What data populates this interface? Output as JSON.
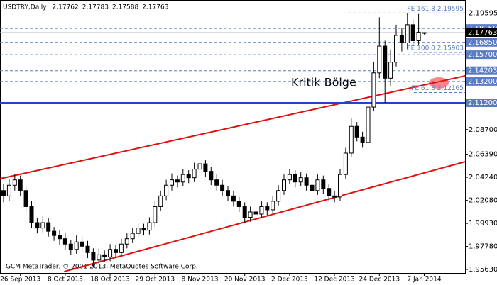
{
  "chart_data": {
    "type": "candlestick",
    "header": {
      "symbol": "USDTRY,Daily",
      "ohlc": [
        2.17762,
        2.17783,
        2.17588,
        2.17763
      ]
    },
    "footer": "GCM MetaTrader, © 2001-2013, MetaQuotes Software Corp.",
    "annotation": "Kritik Bölge",
    "categories": [
      null,
      null,
      null,
      "26 Sep 2013",
      null,
      null,
      null,
      null,
      null,
      null,
      null,
      "8 Oct 2013",
      null,
      null,
      null,
      null,
      null,
      null,
      null,
      "18 Oct 2013",
      null,
      null,
      null,
      null,
      null,
      null,
      null,
      "29 Oct 2013",
      null,
      null,
      null,
      null,
      null,
      null,
      null,
      "8 Nov 2013",
      null,
      null,
      null,
      null,
      null,
      null,
      null,
      "20 Nov 2013",
      null,
      null,
      null,
      null,
      null,
      null,
      null,
      "2 Dec 2013",
      null,
      null,
      null,
      null,
      null,
      null,
      null,
      "12 Dec 2013",
      null,
      null,
      null,
      null,
      null,
      null,
      null,
      "24 Dec 2013",
      null,
      null,
      null,
      null,
      null,
      null,
      null,
      "7 Jan 2014"
    ],
    "open": [
      2.03,
      2.025,
      2.035,
      2.04,
      2.03,
      2.015,
      2.0,
      1.995,
      2.0,
      1.992,
      1.988,
      1.985,
      1.98,
      1.975,
      1.982,
      1.978,
      1.972,
      1.965,
      1.97,
      1.968,
      1.975,
      1.972,
      1.98,
      1.985,
      1.99,
      1.995,
      1.993,
      2.0,
      2.015,
      2.025,
      2.035,
      2.04,
      2.038,
      2.045,
      2.042,
      2.05,
      2.055,
      2.048,
      2.04,
      2.035,
      2.03,
      2.025,
      2.02,
      2.015,
      2.005,
      2.01,
      2.008,
      2.015,
      2.012,
      2.02,
      2.03,
      2.04,
      2.045,
      2.038,
      2.042,
      2.035,
      2.03,
      2.04,
      2.032,
      2.025,
      2.024,
      2.045,
      2.065,
      2.09,
      2.08,
      2.075,
      2.108,
      2.14,
      2.165,
      2.135,
      2.15,
      2.175,
      2.168,
      2.185,
      2.17,
      2.17762
    ],
    "high": [
      2.036,
      2.041,
      2.045,
      2.044,
      2.034,
      2.02,
      2.004,
      2.006,
      2.004,
      1.996,
      1.993,
      1.99,
      1.984,
      1.988,
      1.987,
      1.983,
      1.976,
      1.976,
      1.974,
      1.98,
      1.979,
      1.985,
      1.99,
      1.995,
      2.0,
      1.999,
      2.005,
      2.02,
      2.03,
      2.04,
      2.046,
      2.044,
      2.05,
      2.049,
      2.056,
      2.061,
      2.059,
      2.052,
      2.045,
      2.04,
      2.034,
      2.03,
      2.024,
      2.019,
      2.015,
      2.014,
      2.02,
      2.019,
      2.025,
      2.035,
      2.045,
      2.05,
      2.049,
      2.047,
      2.046,
      2.039,
      2.045,
      2.044,
      2.036,
      2.03,
      2.05,
      2.07,
      2.098,
      2.094,
      2.085,
      2.115,
      2.15,
      2.192,
      2.17,
      2.162,
      2.185,
      2.182,
      2.196,
      2.19,
      2.195,
      2.17783
    ],
    "low": [
      2.019,
      2.02,
      2.03,
      2.025,
      2.01,
      1.995,
      1.99,
      1.991,
      1.987,
      1.983,
      1.979,
      1.975,
      1.97,
      1.971,
      1.973,
      1.967,
      1.958,
      1.961,
      1.963,
      1.964,
      1.967,
      1.968,
      1.976,
      1.981,
      1.986,
      1.988,
      1.989,
      1.996,
      2.011,
      2.021,
      2.03,
      2.033,
      2.034,
      2.037,
      2.038,
      2.045,
      2.043,
      2.035,
      2.03,
      2.025,
      2.02,
      2.015,
      2.01,
      2.0,
      2.001,
      2.003,
      2.004,
      2.007,
      2.008,
      2.016,
      2.026,
      2.036,
      2.033,
      2.034,
      2.03,
      2.025,
      2.026,
      2.027,
      2.02,
      2.019,
      2.02,
      2.041,
      2.061,
      2.076,
      2.07,
      2.071,
      2.104,
      2.135,
      2.112,
      2.128,
      2.146,
      2.16,
      2.162,
      2.165,
      2.166,
      2.17588
    ],
    "close": [
      2.025,
      2.035,
      2.04,
      2.03,
      2.015,
      2.0,
      1.995,
      2.0,
      1.992,
      1.988,
      1.985,
      1.98,
      1.975,
      1.982,
      1.978,
      1.972,
      1.965,
      1.97,
      1.968,
      1.975,
      1.972,
      1.98,
      1.985,
      1.99,
      1.995,
      1.993,
      2.0,
      2.015,
      2.025,
      2.035,
      2.04,
      2.038,
      2.045,
      2.042,
      2.05,
      2.055,
      2.048,
      2.04,
      2.035,
      2.03,
      2.025,
      2.02,
      2.015,
      2.005,
      2.01,
      2.008,
      2.015,
      2.012,
      2.02,
      2.03,
      2.04,
      2.045,
      2.038,
      2.042,
      2.035,
      2.03,
      2.04,
      2.032,
      2.025,
      2.024,
      2.045,
      2.065,
      2.09,
      2.08,
      2.075,
      2.108,
      2.14,
      2.165,
      2.135,
      2.15,
      2.175,
      2.168,
      2.185,
      2.17,
      2.178,
      2.17763
    ],
    "up_color": "#ffffff",
    "down_color": "#000000",
    "ylim": [
      1.953,
      2.2081
    ],
    "yticks": [
      {
        "value": 1.9563,
        "label": "1.95630"
      },
      {
        "value": 1.9778,
        "label": "1.97780"
      },
      {
        "value": 1.9993,
        "label": "1.99930"
      },
      {
        "value": 2.0208,
        "label": "2.02080"
      },
      {
        "value": 2.0424,
        "label": "2.04240"
      },
      {
        "value": 2.0639,
        "label": "2.06390"
      },
      {
        "value": 2.087,
        "label": "2.08700"
      }
    ],
    "price_lines": [
      {
        "value": 2.1815,
        "label": "2.18150",
        "style": "dashed"
      },
      {
        "value": 2.1685,
        "label": "2.16850",
        "style": "dashed"
      },
      {
        "value": 2.157,
        "label": "2.15700",
        "style": "dashed"
      },
      {
        "value": 2.14203,
        "label": "2.14203",
        "style": "dashed"
      },
      {
        "value": 2.132,
        "label": "2.13200",
        "style": "dashed"
      },
      {
        "value": 2.112,
        "label": "2.11200",
        "style": "solid"
      }
    ],
    "line_color": "#5a7cc4",
    "last_price": 2.17763,
    "fib_levels": [
      {
        "value": 2.19595,
        "label": "FE 161.8 2.19595",
        "axis_label": 2.19595
      },
      {
        "value": 2.15903,
        "label": "FE 100.0 2.15903"
      },
      {
        "value": 2.12165,
        "label": "FE 61.8 2.12165"
      }
    ],
    "trend_lines": [
      {
        "color": "#e01010",
        "points": [
          [
            -0.6,
            2.0411
          ],
          [
            82.3,
            2.1372
          ]
        ]
      },
      {
        "color": "#e01010",
        "points": [
          [
            10.8,
            1.9543
          ],
          [
            82.3,
            2.057
          ]
        ]
      }
    ]
  }
}
